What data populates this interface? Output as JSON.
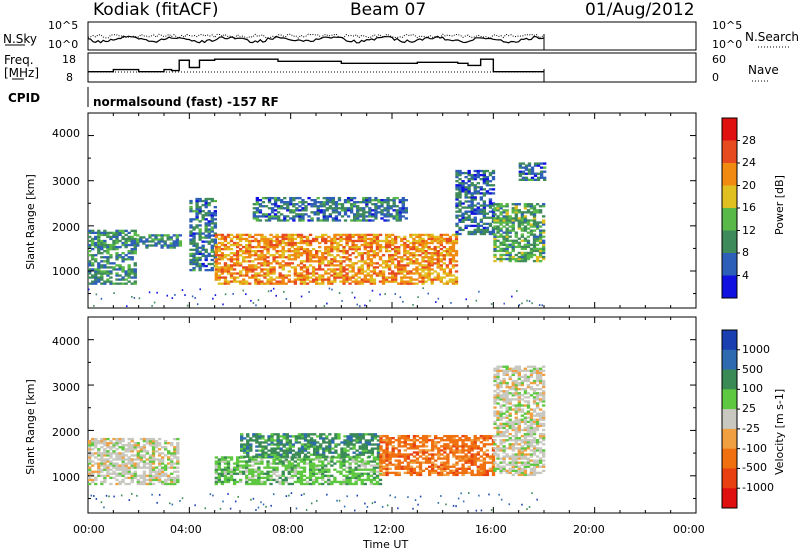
{
  "header": {
    "station": "Kodiak (fitACF)",
    "beam": "Beam 07",
    "date": "01/Aug/2012"
  },
  "top_panel": {
    "left_label": "N.Sky",
    "left_ticks": [
      "10^5",
      "10^0"
    ],
    "right_ticks": [
      "10^5",
      "10^0"
    ],
    "right_label": "N.Search"
  },
  "freq_panel": {
    "label_line1": "Freq.",
    "label_line2": "[MHz]",
    "left_ticks": [
      "18",
      "8"
    ],
    "right_ticks": [
      "60",
      "0"
    ],
    "right_label": "Nave"
  },
  "cpid": {
    "label": "CPID",
    "text": "normalsound (fast) -157 RF"
  },
  "chart_data": [
    {
      "type": "heatmap",
      "name": "power",
      "ylabel": "Slant Range [km]",
      "yticks": [
        1000,
        2000,
        3000,
        4000
      ],
      "ylim": [
        180,
        4500
      ],
      "xlim": [
        0,
        24
      ],
      "colorbar_label": "Power [dB]",
      "colorbar_ticks": [
        4,
        8,
        12,
        16,
        20,
        24,
        28
      ],
      "colors": [
        "#1010e0",
        "#2e5fb8",
        "#3e8a5a",
        "#58b848",
        "#e0c020",
        "#f08a10",
        "#e84a20",
        "#e01010"
      ],
      "bands": [
        {
          "t0": 0.0,
          "t1": 1.9,
          "r0": 700,
          "r1": 1900,
          "level": 10
        },
        {
          "t0": 1.9,
          "t1": 3.6,
          "r0": 1500,
          "r1": 1800,
          "level": 9
        },
        {
          "t0": 4.0,
          "t1": 5.0,
          "r0": 1000,
          "r1": 2600,
          "level": 8
        },
        {
          "t0": 5.0,
          "t1": 14.5,
          "r0": 700,
          "r1": 1800,
          "level": 22
        },
        {
          "t0": 6.5,
          "t1": 12.5,
          "r0": 2100,
          "r1": 2600,
          "level": 8
        },
        {
          "t0": 14.5,
          "t1": 16.0,
          "r0": 1800,
          "r1": 3200,
          "level": 7
        },
        {
          "t0": 16.0,
          "t1": 18.0,
          "r0": 1200,
          "r1": 2500,
          "level": 12
        },
        {
          "t0": 17.0,
          "t1": 18.0,
          "r0": 3000,
          "r1": 3400,
          "level": 8
        }
      ]
    },
    {
      "type": "heatmap",
      "name": "velocity",
      "ylabel": "Slant Range [km]",
      "yticks": [
        1000,
        2000,
        3000,
        4000
      ],
      "ylim": [
        180,
        4500
      ],
      "xlim": [
        0,
        24
      ],
      "xlabel": "Time UT",
      "xticks": [
        "00:00",
        "04:00",
        "08:00",
        "12:00",
        "16:00",
        "20:00",
        "00:00"
      ],
      "colorbar_label": "Velocity [m s-1]",
      "colorbar_ticks": [
        1000,
        500,
        100,
        25,
        -25,
        -100,
        -500,
        -1000
      ],
      "colors": [
        "#1a3fb0",
        "#2e6ab0",
        "#3a8a55",
        "#5ec840",
        "#c8c8c0",
        "#f0a040",
        "#f07010",
        "#e84010",
        "#e01010"
      ],
      "bands": [
        {
          "t0": 0.0,
          "t1": 3.6,
          "r0": 800,
          "r1": 1800,
          "level": 4
        },
        {
          "t0": 5.0,
          "t1": 11.5,
          "r0": 800,
          "r1": 1400,
          "level": 3
        },
        {
          "t0": 6.0,
          "t1": 11.5,
          "r0": 1400,
          "r1": 1900,
          "level": 2
        },
        {
          "t0": 11.5,
          "t1": 16.0,
          "r0": 1000,
          "r1": 1900,
          "level": 6
        },
        {
          "t0": 16.0,
          "t1": 18.0,
          "r0": 1000,
          "r1": 3400,
          "level": 4
        }
      ]
    }
  ]
}
